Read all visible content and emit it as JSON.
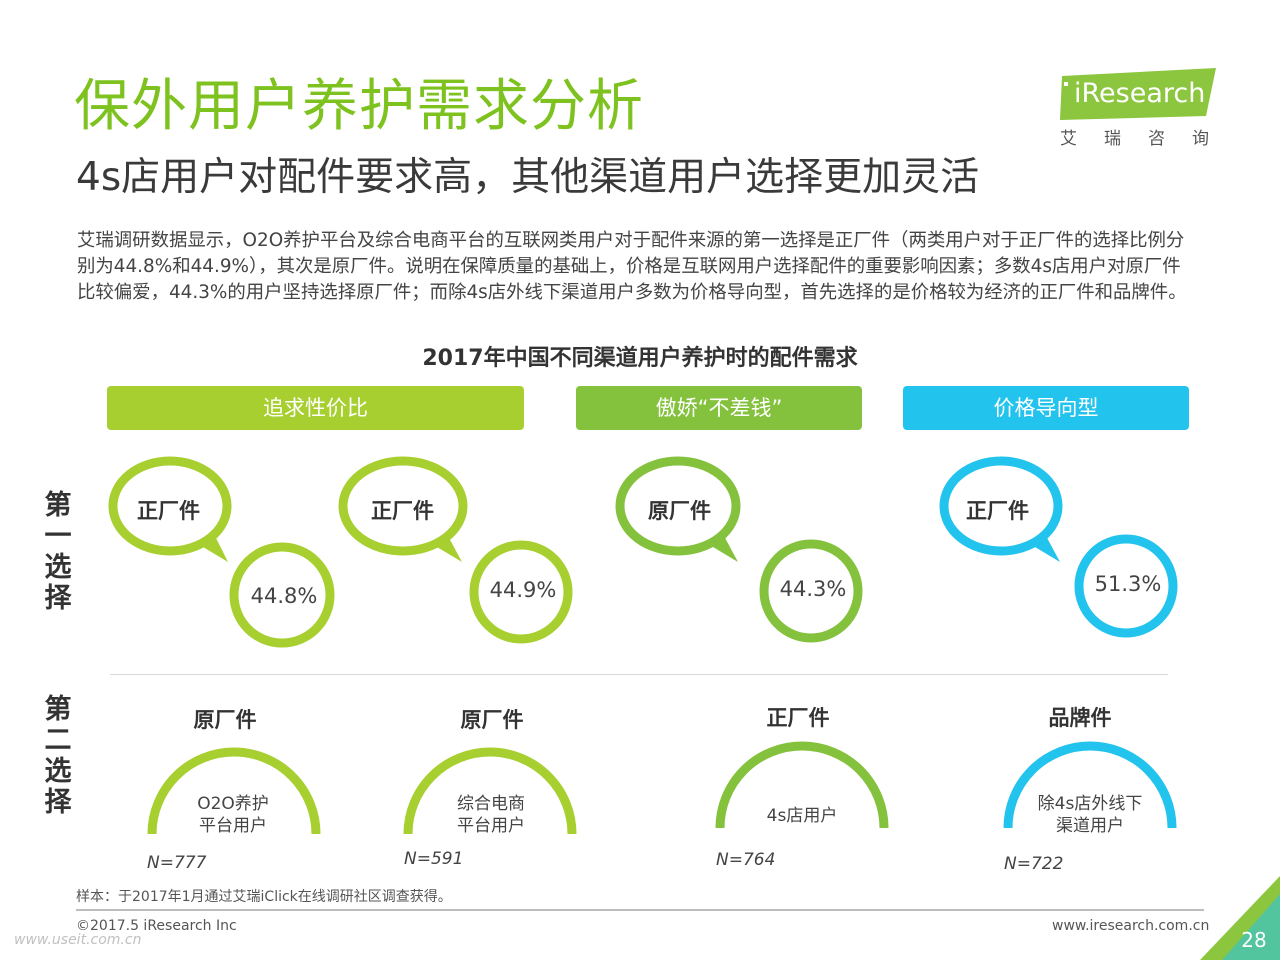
{
  "header": {
    "title": "保外用户养护需求分析",
    "subtitle": "4s店用户对配件要求高，其他渠道用户选择更加灵活"
  },
  "logo": {
    "name": "iResearch",
    "sub": "艾瑞咨询"
  },
  "intro": "艾瑞调研数据显示，O2O养护平台及综合电商平台的互联网类用户对于配件来源的第一选择是正厂件（两类用户对于正厂件的选择比例分别为44.8%和44.9%），其次是原厂件。说明在保障质量的基础上，价格是互联网用户选择配件的重要影响因素；多数4s店用户对原厂件比较偏爱，44.3%的用户坚持选择原厂件；而除4s店外线下渠道用户多数为价格导向型，首先选择的是价格较为经济的正厂件和品牌件。",
  "chart": {
    "title": "2017年中国不同渠道用户养护时的配件需求",
    "categories": [
      "追求性价比",
      "傲娇“不差钱”",
      "价格导向型"
    ],
    "row_labels": {
      "first": "第一选择",
      "second": "第二选择"
    },
    "groups": [
      {
        "first_choice": "正厂件",
        "first_pct": "44.8%",
        "second_choice": "原厂件",
        "channel_line1": "O2O养护",
        "channel_line2": "平台用户",
        "n": "N=777"
      },
      {
        "first_choice": "正厂件",
        "first_pct": "44.9%",
        "second_choice": "原厂件",
        "channel_line1": "综合电商",
        "channel_line2": "平台用户",
        "n": "N=591"
      },
      {
        "first_choice": "原厂件",
        "first_pct": "44.3%",
        "second_choice": "正厂件",
        "channel_line1": "4s店用户",
        "channel_line2": "",
        "n": "N=764"
      },
      {
        "first_choice": "正厂件",
        "first_pct": "51.3%",
        "second_choice": "品牌件",
        "channel_line1": "除4s店外线下",
        "channel_line2": "渠道用户",
        "n": "N=722"
      }
    ],
    "colors": {
      "lime": "#a7cf2f",
      "green": "#84c13c",
      "blue": "#22c3ed"
    }
  },
  "footer": {
    "note": "样本：于2017年1月通过艾瑞iClick在线调研社区调查获得。",
    "copyright": "©2017.5 iResearch Inc",
    "site": "www.iresearch.com.cn",
    "watermark": "www.useit.com.cn",
    "page": "28"
  }
}
